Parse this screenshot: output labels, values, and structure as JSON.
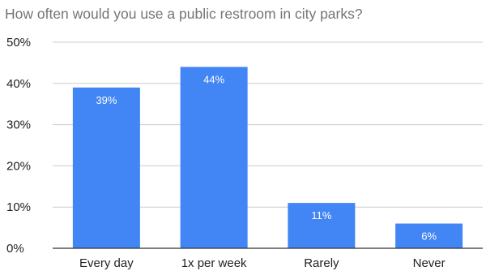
{
  "title": "How often would you use a public restroom in city parks?",
  "chart_data": {
    "type": "bar",
    "title": "How often would you use a public restroom in city parks?",
    "categories": [
      "Every day",
      "1x per week",
      "Rarely",
      "Never"
    ],
    "values": [
      39,
      44,
      11,
      6
    ],
    "data_labels": [
      "39%",
      "44%",
      "11%",
      "6%"
    ],
    "y_ticks": [
      "0%",
      "10%",
      "20%",
      "30%",
      "40%",
      "50%"
    ],
    "y_tick_values": [
      0,
      10,
      20,
      30,
      40,
      50
    ],
    "ylim": [
      0,
      50
    ],
    "xlabel": "",
    "ylabel": "",
    "grid": true,
    "legend": "none",
    "bar_color": "#4285f4",
    "grid_color": "#cccccc",
    "baseline_color": "#333333"
  }
}
